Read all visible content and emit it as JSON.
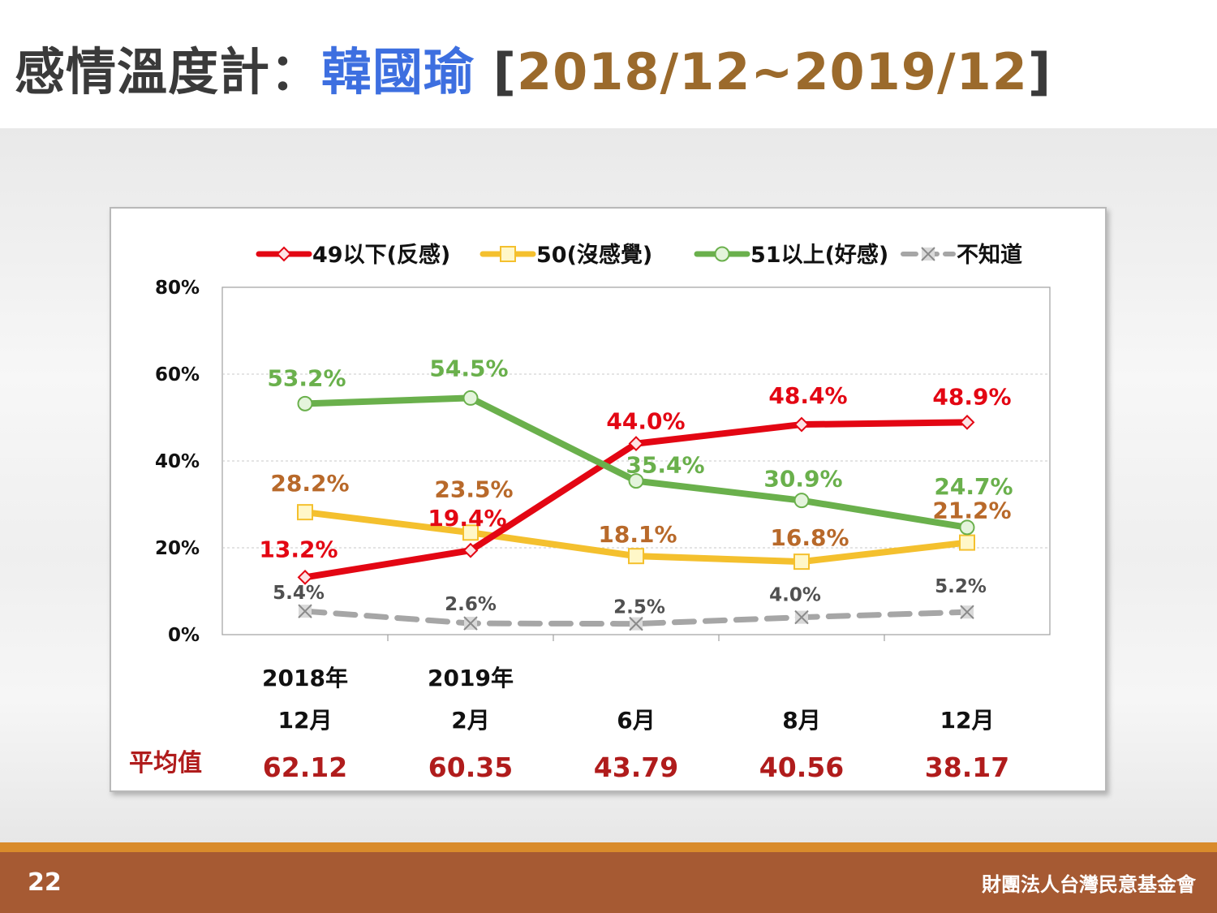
{
  "title": {
    "prefix": "感情溫度計：",
    "name": "韓國瑜",
    "bracket_open": " [",
    "range": "2018/12~2019/12",
    "bracket_close": "]"
  },
  "footer": {
    "page_number": "22",
    "organization": "財團法人台灣民意基金會"
  },
  "colors": {
    "series1": "#e30613",
    "series2": "#f4c02e",
    "series3": "#6ab04c",
    "series4": "#a6a6a6",
    "label1": "#e30613",
    "label2": "#b8692a",
    "label3": "#6ab04c",
    "label4": "#505050",
    "average": "#b01c1c"
  },
  "chart_data": {
    "type": "line",
    "categories": [
      {
        "year": "2018年",
        "month": "12月"
      },
      {
        "year": "2019年",
        "month": "2月"
      },
      {
        "year": "",
        "month": "6月"
      },
      {
        "year": "",
        "month": "8月"
      },
      {
        "year": "",
        "month": "12月"
      }
    ],
    "ylim": [
      0,
      80
    ],
    "yticks": [
      0,
      20,
      40,
      60,
      80
    ],
    "ytick_labels": [
      "0%",
      "20%",
      "40%",
      "60%",
      "80%"
    ],
    "grid": "horizontal dashed",
    "legend_position": "top",
    "series": [
      {
        "name": "49以下(反感)",
        "marker": "diamond",
        "values": [
          13.2,
          19.4,
          44.0,
          48.4,
          48.9
        ],
        "labels": [
          "13.2%",
          "19.4%",
          "44.0%",
          "48.4%",
          "48.9%"
        ]
      },
      {
        "name": "50(沒感覺)",
        "marker": "square",
        "values": [
          28.2,
          23.5,
          18.1,
          16.8,
          21.2
        ],
        "labels": [
          "28.2%",
          "23.5%",
          "18.1%",
          "16.8%",
          "21.2%"
        ]
      },
      {
        "name": "51以上(好感)",
        "marker": "circle",
        "values": [
          53.2,
          54.5,
          35.4,
          30.9,
          24.7
        ],
        "labels": [
          "53.2%",
          "54.5%",
          "35.4%",
          "30.9%",
          "24.7%"
        ]
      },
      {
        "name": "不知道",
        "marker": "x",
        "dashed": true,
        "values": [
          5.4,
          2.6,
          2.5,
          4.0,
          5.2
        ],
        "labels": [
          "5.4%",
          "2.6%",
          "2.5%",
          "4.0%",
          "5.2%"
        ]
      }
    ],
    "average": {
      "label": "平均值",
      "values": [
        "62.12",
        "60.35",
        "43.79",
        "40.56",
        "38.17"
      ]
    }
  }
}
